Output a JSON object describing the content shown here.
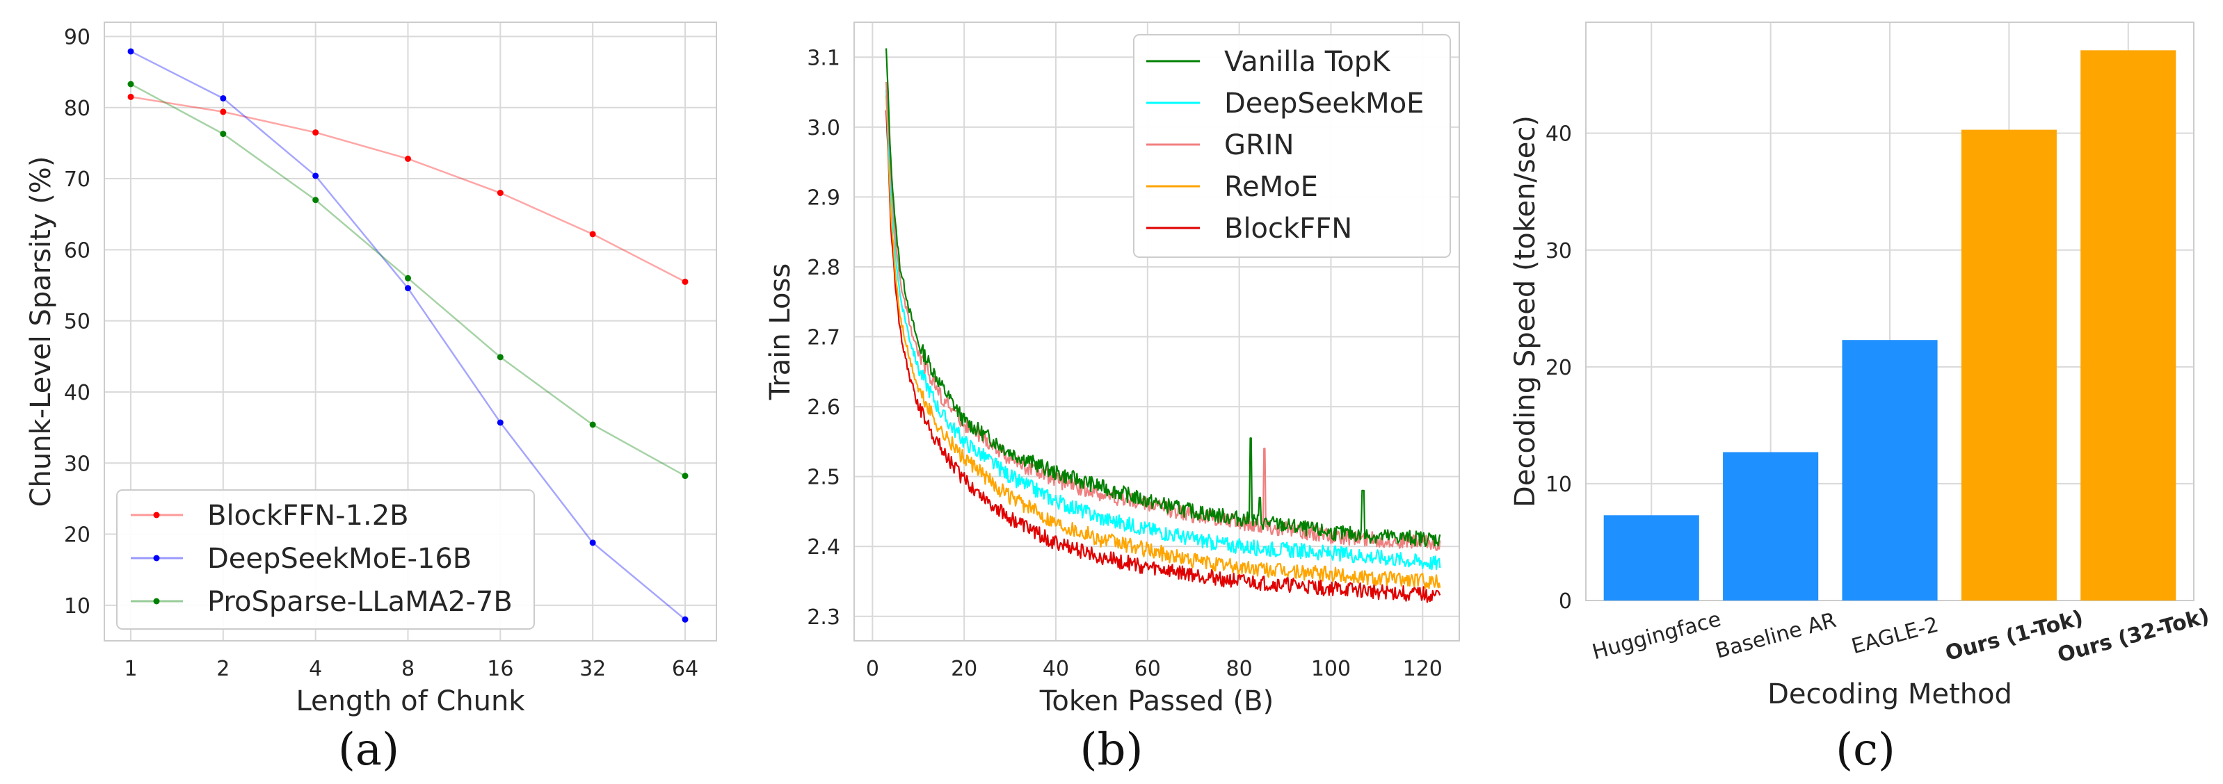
{
  "chart_data": [
    {
      "panel": "(a)",
      "type": "line",
      "xlabel": "Length of Chunk",
      "ylabel": "Chunk-Level Sparsity (%)",
      "x": [
        1,
        2,
        4,
        8,
        16,
        32,
        64
      ],
      "x_scale": "log2",
      "ylim": [
        5,
        92
      ],
      "yticks": [
        10,
        20,
        30,
        40,
        50,
        60,
        70,
        80,
        90
      ],
      "grid": true,
      "legend_position": "lower-left",
      "series": [
        {
          "name": "BlockFFN-1.2B",
          "color": "#ff0000",
          "values": [
            81.5,
            79.4,
            76.5,
            72.8,
            68.0,
            62.2,
            55.5
          ]
        },
        {
          "name": "DeepSeekMoE-16B",
          "color": "#0000ff",
          "values": [
            87.9,
            81.3,
            70.4,
            54.6,
            35.7,
            18.8,
            8.0
          ]
        },
        {
          "name": "ProSparse-LLaMA2-7B",
          "color": "#008000",
          "values": [
            83.3,
            76.3,
            67.0,
            56.0,
            44.9,
            35.4,
            28.2
          ]
        }
      ]
    },
    {
      "panel": "(b)",
      "type": "line",
      "xlabel": "Token Passed (B)",
      "ylabel": "Train Loss",
      "xlim": [
        -4,
        128
      ],
      "ylim": [
        2.265,
        3.15
      ],
      "xticks": [
        0,
        20,
        40,
        60,
        80,
        100,
        120
      ],
      "yticks": [
        2.3,
        2.4,
        2.5,
        2.6,
        2.7,
        2.8,
        2.9,
        3.0,
        3.1
      ],
      "grid": true,
      "legend_position": "top-right",
      "series": [
        {
          "name": "Vanilla TopK",
          "color": "#008000",
          "x": [
            3,
            4,
            5,
            6,
            8,
            10,
            15,
            20,
            30,
            40,
            50,
            60,
            70,
            80,
            90,
            100,
            110,
            124
          ],
          "values": [
            3.11,
            2.95,
            2.86,
            2.8,
            2.74,
            2.69,
            2.63,
            2.58,
            2.535,
            2.505,
            2.485,
            2.465,
            2.45,
            2.44,
            2.43,
            2.42,
            2.415,
            2.41
          ],
          "spikes": [
            [
              82.5,
              2.555
            ],
            [
              107,
              2.48
            ],
            [
              84.5,
              2.47
            ]
          ]
        },
        {
          "name": "DeepSeekMoE",
          "color": "#00ffff",
          "x": [
            3,
            4,
            5,
            6,
            8,
            10,
            15,
            20,
            30,
            40,
            50,
            60,
            70,
            80,
            90,
            100,
            110,
            124
          ],
          "values": [
            3.05,
            2.91,
            2.82,
            2.76,
            2.7,
            2.655,
            2.59,
            2.55,
            2.5,
            2.465,
            2.44,
            2.425,
            2.41,
            2.4,
            2.395,
            2.39,
            2.385,
            2.375
          ],
          "spikes": []
        },
        {
          "name": "GRIN",
          "color": "#f08080",
          "x": [
            3,
            4,
            5,
            6,
            8,
            10,
            15,
            20,
            30,
            40,
            50,
            60,
            70,
            80,
            90,
            100,
            110,
            124
          ],
          "values": [
            3.06,
            2.93,
            2.84,
            2.78,
            2.72,
            2.675,
            2.615,
            2.575,
            2.525,
            2.495,
            2.475,
            2.46,
            2.445,
            2.435,
            2.425,
            2.415,
            2.41,
            2.405
          ],
          "spikes": [
            [
              85.5,
              2.54
            ]
          ]
        },
        {
          "name": "ReMoE",
          "color": "#ffa500",
          "x": [
            3,
            4,
            5,
            6,
            8,
            10,
            15,
            20,
            30,
            40,
            50,
            60,
            70,
            80,
            90,
            100,
            110,
            124
          ],
          "values": [
            3.04,
            2.88,
            2.79,
            2.73,
            2.67,
            2.625,
            2.565,
            2.525,
            2.47,
            2.435,
            2.41,
            2.395,
            2.38,
            2.37,
            2.365,
            2.36,
            2.355,
            2.35
          ],
          "spikes": []
        },
        {
          "name": "BlockFFN",
          "color": "#e00000",
          "x": [
            3,
            4,
            5,
            6,
            8,
            10,
            15,
            20,
            30,
            40,
            50,
            60,
            70,
            80,
            90,
            100,
            110,
            124
          ],
          "values": [
            3.03,
            2.86,
            2.77,
            2.71,
            2.645,
            2.6,
            2.54,
            2.495,
            2.44,
            2.405,
            2.385,
            2.37,
            2.36,
            2.35,
            2.345,
            2.34,
            2.335,
            2.33
          ],
          "spikes": []
        }
      ]
    },
    {
      "panel": "(c)",
      "type": "bar",
      "xlabel": "Decoding Method",
      "ylabel": "Decoding Speed (token/sec)",
      "ylim": [
        0,
        49.5
      ],
      "yticks": [
        0,
        10,
        20,
        30,
        40
      ],
      "grid": true,
      "categories": [
        "Huggingface",
        "Baseline AR",
        "EAGLE-2",
        "Ours (1-Tok)",
        "Ours (32-Tok)"
      ],
      "bold_categories": [
        false,
        false,
        false,
        true,
        true
      ],
      "values": [
        7.3,
        12.7,
        22.3,
        40.3,
        47.1
      ],
      "bar_colors": [
        "#1e90ff",
        "#1e90ff",
        "#1e90ff",
        "#ffa500",
        "#ffa500"
      ]
    }
  ]
}
